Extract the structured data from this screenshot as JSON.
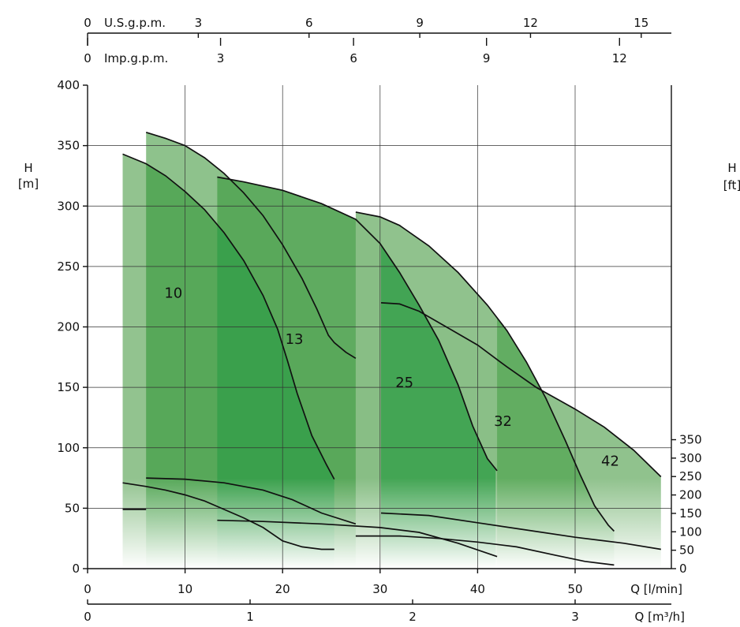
{
  "chart_data": {
    "type": "area",
    "title": "",
    "grid": true,
    "axes": {
      "x_main": {
        "label": "Q [l/min]",
        "range": [
          0,
          60
        ],
        "ticks": [
          0,
          10,
          20,
          30,
          40,
          50
        ]
      },
      "x_m3h": {
        "label": "Q [m³/h]",
        "range": [
          0,
          3.6
        ],
        "ticks": [
          0,
          1,
          2,
          3
        ]
      },
      "x_usgpm": {
        "label": "U.S.g.p.m.",
        "range": [
          0,
          15.85
        ],
        "ticks": [
          0,
          3,
          6,
          9,
          12,
          15
        ]
      },
      "x_impgpm": {
        "label": "Imp.g.p.m.",
        "range": [
          0,
          13.2
        ],
        "ticks": [
          0,
          3,
          6,
          9,
          12
        ]
      },
      "y_left": {
        "label": "H",
        "unit": "[m]",
        "range": [
          0,
          400
        ],
        "ticks": [
          0,
          50,
          100,
          150,
          200,
          250,
          300,
          350,
          400
        ]
      },
      "y_right": {
        "label": "H",
        "unit": "[ft]",
        "range": [
          0,
          1312
        ],
        "ticks": [
          0,
          50,
          100,
          150,
          200,
          250,
          300,
          350
        ]
      }
    },
    "x_grid": [
      10,
      20,
      30,
      40,
      50
    ],
    "y_grid": [
      50,
      100,
      150,
      200,
      250,
      300,
      350
    ],
    "series": [
      {
        "name": "10",
        "label_pos": {
          "x": 8.8,
          "y": 224
        },
        "q_range": [
          3.6,
          25.3
        ],
        "head_curve": [
          [
            3.6,
            343
          ],
          [
            6,
            335
          ],
          [
            8,
            325
          ],
          [
            10,
            312
          ],
          [
            12,
            297
          ],
          [
            14,
            278
          ],
          [
            16,
            255
          ],
          [
            18,
            226
          ],
          [
            19.5,
            198
          ],
          [
            20.5,
            172
          ],
          [
            21.5,
            145
          ],
          [
            23,
            110
          ],
          [
            24.5,
            86
          ],
          [
            25.3,
            74
          ]
        ],
        "power_curve": [
          [
            3.6,
            71
          ],
          [
            6,
            68
          ],
          [
            8,
            65
          ],
          [
            10,
            61
          ],
          [
            12,
            56
          ],
          [
            14,
            49
          ],
          [
            16,
            42
          ],
          [
            18,
            34
          ],
          [
            20,
            23
          ],
          [
            22,
            18
          ],
          [
            24,
            16
          ],
          [
            25.3,
            16
          ]
        ]
      },
      {
        "name": "13",
        "label_pos": {
          "x": 21.2,
          "y": 186
        },
        "q_range": [
          6,
          27.5
        ],
        "head_curve": [
          [
            6,
            361
          ],
          [
            8,
            356
          ],
          [
            10,
            350
          ],
          [
            12,
            340
          ],
          [
            14,
            327
          ],
          [
            16,
            311
          ],
          [
            18,
            292
          ],
          [
            20,
            268
          ],
          [
            22,
            240
          ],
          [
            23.5,
            215
          ],
          [
            24.7,
            193
          ],
          [
            25.3,
            187
          ],
          [
            26.5,
            179
          ],
          [
            27.5,
            174
          ]
        ],
        "power_curve": [
          [
            6,
            75
          ],
          [
            10,
            74
          ],
          [
            14,
            71
          ],
          [
            18,
            65
          ],
          [
            21,
            57
          ],
          [
            24,
            46
          ],
          [
            27.5,
            37
          ]
        ]
      },
      {
        "name": "25",
        "label_pos": {
          "x": 32.5,
          "y": 150
        },
        "q_range": [
          13.3,
          42
        ],
        "head_curve": [
          [
            13.3,
            324
          ],
          [
            16,
            320
          ],
          [
            20,
            313
          ],
          [
            24,
            302
          ],
          [
            27.5,
            289
          ],
          [
            30,
            269
          ],
          [
            32,
            245
          ],
          [
            34,
            218
          ],
          [
            36,
            189
          ],
          [
            38,
            152
          ],
          [
            39.5,
            118
          ],
          [
            41,
            91
          ],
          [
            42,
            81
          ]
        ],
        "power_curve": [
          [
            13.3,
            40
          ],
          [
            18,
            39
          ],
          [
            24,
            37
          ],
          [
            30,
            34
          ],
          [
            34,
            30
          ],
          [
            38,
            21
          ],
          [
            42,
            10
          ]
        ]
      },
      {
        "name": "32",
        "label_pos": {
          "x": 42.6,
          "y": 118
        },
        "q_range": [
          27.5,
          54
        ],
        "head_curve": [
          [
            27.5,
            295
          ],
          [
            30,
            291
          ],
          [
            32,
            284
          ],
          [
            35,
            267
          ],
          [
            38,
            245
          ],
          [
            41,
            218
          ],
          [
            43,
            197
          ],
          [
            45,
            171
          ],
          [
            47,
            141
          ],
          [
            49,
            106
          ],
          [
            50.5,
            78
          ],
          [
            52,
            52
          ],
          [
            53.4,
            36
          ],
          [
            54,
            31
          ]
        ],
        "power_curve": [
          [
            27.5,
            27
          ],
          [
            32,
            27
          ],
          [
            36,
            25
          ],
          [
            40,
            22
          ],
          [
            44,
            18
          ],
          [
            48,
            11
          ],
          [
            51,
            6
          ],
          [
            54,
            3
          ]
        ]
      },
      {
        "name": "42",
        "label_pos": {
          "x": 53.6,
          "y": 85
        },
        "q_range": [
          30.1,
          58.8
        ],
        "head_curve": [
          [
            30.1,
            220
          ],
          [
            32,
            219
          ],
          [
            34,
            213
          ],
          [
            37,
            199
          ],
          [
            40,
            185
          ],
          [
            43,
            167
          ],
          [
            46,
            150
          ],
          [
            50,
            132
          ],
          [
            53,
            117
          ],
          [
            56,
            98
          ],
          [
            58.8,
            76
          ]
        ],
        "power_curve": [
          [
            30.1,
            46
          ],
          [
            35,
            44
          ],
          [
            40,
            38
          ],
          [
            45,
            32
          ],
          [
            50,
            26
          ],
          [
            55,
            21
          ],
          [
            58.8,
            16
          ]
        ]
      }
    ],
    "stub_line": [
      [
        3.6,
        49
      ],
      [
        6,
        49
      ]
    ]
  }
}
